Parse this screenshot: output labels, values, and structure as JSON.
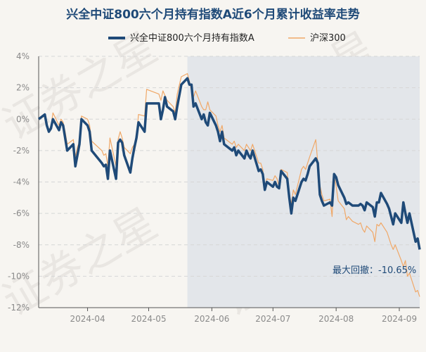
{
  "chart_data": {
    "type": "line",
    "title": "兴全中证800六个月持有指数A近6个月累计收益率走势",
    "yticks": [
      "4%",
      "2%",
      "0%",
      "-2%",
      "-4%",
      "-6%",
      "-8%",
      "-10%",
      "-12%"
    ],
    "ylim": [
      -12,
      4
    ],
    "xticks": [
      {
        "label": "2024-04",
        "x": "2024-04-01"
      },
      {
        "label": "2024-05",
        "x": "2024-05-01"
      },
      {
        "label": "2024-06",
        "x": "2024-06-01"
      },
      {
        "label": "2024-07",
        "x": "2024-07-01"
      },
      {
        "label": "2024-08",
        "x": "2024-08-01"
      },
      {
        "label": "2024-09",
        "x": "2024-09-01"
      }
    ],
    "xlim": [
      "2024-03-08",
      "2024-09-11"
    ],
    "legend_position": "top",
    "grid": true,
    "shaded_region": {
      "start": "2024-05-20",
      "end": "2024-09-11"
    },
    "annotation": {
      "label": "最大回撤：",
      "value": "-10.65%"
    },
    "series": [
      {
        "name": "兴全中证800六个月持有指数A",
        "color": "#1f4a78",
        "values": [
          [
            "2024-03-08",
            0.0
          ],
          [
            "2024-03-11",
            0.3
          ],
          [
            "2024-03-12",
            -0.4
          ],
          [
            "2024-03-13",
            -0.8
          ],
          [
            "2024-03-14",
            -0.6
          ],
          [
            "2024-03-15",
            0.0
          ],
          [
            "2024-03-18",
            -0.7
          ],
          [
            "2024-03-19",
            -0.2
          ],
          [
            "2024-03-20",
            -0.4
          ],
          [
            "2024-03-21",
            -1.2
          ],
          [
            "2024-03-22",
            -2.0
          ],
          [
            "2024-03-25",
            -1.6
          ],
          [
            "2024-03-26",
            -3.0
          ],
          [
            "2024-03-27",
            -2.3
          ],
          [
            "2024-03-28",
            -1.6
          ],
          [
            "2024-03-29",
            0.0
          ],
          [
            "2024-04-01",
            -0.4
          ],
          [
            "2024-04-02",
            -0.8
          ],
          [
            "2024-04-03",
            -2.0
          ],
          [
            "2024-04-08",
            -2.8
          ],
          [
            "2024-04-09",
            -3.0
          ],
          [
            "2024-04-10",
            -2.9
          ],
          [
            "2024-04-11",
            -3.8
          ],
          [
            "2024-04-12",
            -2.0
          ],
          [
            "2024-04-15",
            -3.8
          ],
          [
            "2024-04-16",
            -1.5
          ],
          [
            "2024-04-17",
            -1.3
          ],
          [
            "2024-04-18",
            -1.5
          ],
          [
            "2024-04-19",
            -2.3
          ],
          [
            "2024-04-22",
            -3.4
          ],
          [
            "2024-04-23",
            -2.5
          ],
          [
            "2024-04-24",
            -1.8
          ],
          [
            "2024-04-25",
            -1.2
          ],
          [
            "2024-04-26",
            -0.2
          ],
          [
            "2024-04-29",
            -0.8
          ],
          [
            "2024-04-30",
            1.0
          ],
          [
            "2024-05-06",
            1.0
          ],
          [
            "2024-05-07",
            0.0
          ],
          [
            "2024-05-08",
            0.6
          ],
          [
            "2024-05-09",
            1.4
          ],
          [
            "2024-05-10",
            0.8
          ],
          [
            "2024-05-13",
            0.5
          ],
          [
            "2024-05-14",
            0.0
          ],
          [
            "2024-05-15",
            0.8
          ],
          [
            "2024-05-17",
            2.2
          ],
          [
            "2024-05-20",
            2.6
          ],
          [
            "2024-05-21",
            2.2
          ],
          [
            "2024-05-22",
            2.2
          ],
          [
            "2024-05-23",
            0.8
          ],
          [
            "2024-05-24",
            1.0
          ],
          [
            "2024-05-27",
            0.0
          ],
          [
            "2024-05-28",
            0.3
          ],
          [
            "2024-05-29",
            -0.2
          ],
          [
            "2024-05-30",
            -0.4
          ],
          [
            "2024-05-31",
            0.4
          ],
          [
            "2024-06-03",
            -0.4
          ],
          [
            "2024-06-04",
            -0.8
          ],
          [
            "2024-06-05",
            -1.4
          ],
          [
            "2024-06-06",
            -0.8
          ],
          [
            "2024-06-07",
            -1.6
          ],
          [
            "2024-06-11",
            -2.0
          ],
          [
            "2024-06-12",
            -1.8
          ],
          [
            "2024-06-13",
            -2.3
          ],
          [
            "2024-06-14",
            -2.0
          ],
          [
            "2024-06-17",
            -2.5
          ],
          [
            "2024-06-18",
            -2.0
          ],
          [
            "2024-06-19",
            -2.3
          ],
          [
            "2024-06-20",
            -2.5
          ],
          [
            "2024-06-21",
            -2.0
          ],
          [
            "2024-06-24",
            -3.3
          ],
          [
            "2024-06-25",
            -3.2
          ],
          [
            "2024-06-26",
            -3.5
          ],
          [
            "2024-06-27",
            -4.5
          ],
          [
            "2024-06-28",
            -4.0
          ],
          [
            "2024-07-01",
            -4.3
          ],
          [
            "2024-07-02",
            -4.0
          ],
          [
            "2024-07-03",
            -4.3
          ],
          [
            "2024-07-04",
            -4.4
          ],
          [
            "2024-07-05",
            -3.3
          ],
          [
            "2024-07-08",
            -3.8
          ],
          [
            "2024-07-09",
            -5.0
          ],
          [
            "2024-07-10",
            -6.0
          ],
          [
            "2024-07-11",
            -5.0
          ],
          [
            "2024-07-12",
            -5.2
          ],
          [
            "2024-07-15",
            -4.0
          ],
          [
            "2024-07-16",
            -3.8
          ],
          [
            "2024-07-17",
            -3.9
          ],
          [
            "2024-07-18",
            -3.5
          ],
          [
            "2024-07-19",
            -3.0
          ],
          [
            "2024-07-22",
            -2.5
          ],
          [
            "2024-07-23",
            -2.8
          ],
          [
            "2024-07-24",
            -4.8
          ],
          [
            "2024-07-25",
            -5.2
          ],
          [
            "2024-07-26",
            -5.5
          ],
          [
            "2024-07-29",
            -5.3
          ],
          [
            "2024-07-30",
            -5.5
          ],
          [
            "2024-07-31",
            -3.5
          ],
          [
            "2024-08-01",
            -3.7
          ],
          [
            "2024-08-02",
            -4.2
          ],
          [
            "2024-08-05",
            -5.0
          ],
          [
            "2024-08-06",
            -5.4
          ],
          [
            "2024-08-07",
            -5.3
          ],
          [
            "2024-08-09",
            -5.5
          ],
          [
            "2024-08-12",
            -5.5
          ],
          [
            "2024-08-13",
            -5.4
          ],
          [
            "2024-08-14",
            -5.5
          ],
          [
            "2024-08-15",
            -5.8
          ],
          [
            "2024-08-16",
            -5.3
          ],
          [
            "2024-08-19",
            -5.6
          ],
          [
            "2024-08-20",
            -6.2
          ],
          [
            "2024-08-21",
            -5.3
          ],
          [
            "2024-08-22",
            -5.3
          ],
          [
            "2024-08-23",
            -4.7
          ],
          [
            "2024-08-26",
            -5.4
          ],
          [
            "2024-08-27",
            -5.7
          ],
          [
            "2024-08-28",
            -6.2
          ],
          [
            "2024-08-29",
            -6.7
          ],
          [
            "2024-08-30",
            -6.0
          ],
          [
            "2024-09-02",
            -6.6
          ],
          [
            "2024-09-03",
            -5.3
          ],
          [
            "2024-09-04",
            -6.0
          ],
          [
            "2024-09-05",
            -6.6
          ],
          [
            "2024-09-06",
            -6.0
          ],
          [
            "2024-09-09",
            -7.8
          ],
          [
            "2024-09-10",
            -7.6
          ],
          [
            "2024-09-11",
            -8.3
          ]
        ]
      },
      {
        "name": "沪深300",
        "color": "#f0a868",
        "values": [
          [
            "2024-03-08",
            0.0
          ],
          [
            "2024-03-11",
            0.2
          ],
          [
            "2024-03-12",
            -0.4
          ],
          [
            "2024-03-13",
            -0.7
          ],
          [
            "2024-03-14",
            -0.5
          ],
          [
            "2024-03-15",
            0.4
          ],
          [
            "2024-03-18",
            -0.4
          ],
          [
            "2024-03-19",
            0.0
          ],
          [
            "2024-03-20",
            -0.2
          ],
          [
            "2024-03-21",
            -0.8
          ],
          [
            "2024-03-22",
            -1.6
          ],
          [
            "2024-03-25",
            -1.3
          ],
          [
            "2024-03-26",
            -2.4
          ],
          [
            "2024-03-27",
            -1.8
          ],
          [
            "2024-03-28",
            -1.4
          ],
          [
            "2024-03-29",
            0.2
          ],
          [
            "2024-04-01",
            0.0
          ],
          [
            "2024-04-02",
            -0.4
          ],
          [
            "2024-04-03",
            -1.4
          ],
          [
            "2024-04-08",
            -2.0
          ],
          [
            "2024-04-09",
            -2.3
          ],
          [
            "2024-04-10",
            -2.2
          ],
          [
            "2024-04-11",
            -3.0
          ],
          [
            "2024-04-12",
            -1.2
          ],
          [
            "2024-04-15",
            -3.0
          ],
          [
            "2024-04-16",
            -1.3
          ],
          [
            "2024-04-17",
            -0.8
          ],
          [
            "2024-04-18",
            -1.2
          ],
          [
            "2024-04-19",
            -1.8
          ],
          [
            "2024-04-22",
            -2.2
          ],
          [
            "2024-04-23",
            -1.8
          ],
          [
            "2024-04-24",
            -1.6
          ],
          [
            "2024-04-25",
            -1.2
          ],
          [
            "2024-04-26",
            0.3
          ],
          [
            "2024-04-29",
            0.2
          ],
          [
            "2024-04-30",
            1.9
          ],
          [
            "2024-05-06",
            1.6
          ],
          [
            "2024-05-07",
            1.2
          ],
          [
            "2024-05-08",
            1.8
          ],
          [
            "2024-05-09",
            1.5
          ],
          [
            "2024-05-10",
            1.2
          ],
          [
            "2024-05-13",
            0.8
          ],
          [
            "2024-05-14",
            0.4
          ],
          [
            "2024-05-15",
            1.6
          ],
          [
            "2024-05-17",
            2.7
          ],
          [
            "2024-05-20",
            2.9
          ],
          [
            "2024-05-21",
            2.4
          ],
          [
            "2024-05-22",
            1.8
          ],
          [
            "2024-05-23",
            1.4
          ],
          [
            "2024-05-24",
            1.8
          ],
          [
            "2024-05-27",
            0.8
          ],
          [
            "2024-05-28",
            0.6
          ],
          [
            "2024-05-29",
            0.6
          ],
          [
            "2024-05-30",
            1.1
          ],
          [
            "2024-05-31",
            0.6
          ],
          [
            "2024-06-03",
            0.2
          ],
          [
            "2024-06-04",
            -0.4
          ],
          [
            "2024-06-05",
            -0.8
          ],
          [
            "2024-06-06",
            -0.4
          ],
          [
            "2024-06-07",
            -1.2
          ],
          [
            "2024-06-11",
            -1.6
          ],
          [
            "2024-06-12",
            -1.4
          ],
          [
            "2024-06-13",
            -1.8
          ],
          [
            "2024-06-14",
            -1.6
          ],
          [
            "2024-06-17",
            -2.0
          ],
          [
            "2024-06-18",
            -1.6
          ],
          [
            "2024-06-19",
            -1.8
          ],
          [
            "2024-06-20",
            -2.0
          ],
          [
            "2024-06-21",
            -1.6
          ],
          [
            "2024-06-24",
            -2.8
          ],
          [
            "2024-06-25",
            -2.8
          ],
          [
            "2024-06-26",
            -3.2
          ],
          [
            "2024-06-27",
            -4.3
          ],
          [
            "2024-06-28",
            -3.8
          ],
          [
            "2024-07-01",
            -3.9
          ],
          [
            "2024-07-02",
            -3.6
          ],
          [
            "2024-07-03",
            -3.8
          ],
          [
            "2024-07-04",
            -4.3
          ],
          [
            "2024-07-05",
            -3.2
          ],
          [
            "2024-07-08",
            -3.4
          ],
          [
            "2024-07-09",
            -4.8
          ],
          [
            "2024-07-10",
            -5.4
          ],
          [
            "2024-07-11",
            -4.5
          ],
          [
            "2024-07-12",
            -4.8
          ],
          [
            "2024-07-15",
            -3.2
          ],
          [
            "2024-07-16",
            -3.0
          ],
          [
            "2024-07-17",
            -3.2
          ],
          [
            "2024-07-18",
            -2.8
          ],
          [
            "2024-07-19",
            -2.4
          ],
          [
            "2024-07-22",
            -1.3
          ],
          [
            "2024-07-23",
            -2.8
          ],
          [
            "2024-07-24",
            -4.2
          ],
          [
            "2024-07-25",
            -4.8
          ],
          [
            "2024-07-26",
            -5.2
          ],
          [
            "2024-07-29",
            -5.1
          ],
          [
            "2024-07-30",
            -6.2
          ],
          [
            "2024-07-31",
            -3.6
          ],
          [
            "2024-08-01",
            -4.3
          ],
          [
            "2024-08-02",
            -5.2
          ],
          [
            "2024-08-05",
            -5.7
          ],
          [
            "2024-08-06",
            -6.4
          ],
          [
            "2024-08-07",
            -6.2
          ],
          [
            "2024-08-09",
            -6.5
          ],
          [
            "2024-08-12",
            -6.7
          ],
          [
            "2024-08-13",
            -6.6
          ],
          [
            "2024-08-14",
            -7.0
          ],
          [
            "2024-08-15",
            -7.2
          ],
          [
            "2024-08-16",
            -6.8
          ],
          [
            "2024-08-19",
            -7.2
          ],
          [
            "2024-08-20",
            -7.8
          ],
          [
            "2024-08-21",
            -6.7
          ],
          [
            "2024-08-22",
            -6.8
          ],
          [
            "2024-08-23",
            -6.6
          ],
          [
            "2024-08-26",
            -7.2
          ],
          [
            "2024-08-27",
            -7.6
          ],
          [
            "2024-08-28",
            -8.0
          ],
          [
            "2024-08-29",
            -8.3
          ],
          [
            "2024-08-30",
            -8.0
          ],
          [
            "2024-09-02",
            -9.0
          ],
          [
            "2024-09-03",
            -9.4
          ],
          [
            "2024-09-04",
            -9.0
          ],
          [
            "2024-09-05",
            -10.0
          ],
          [
            "2024-09-06",
            -9.8
          ],
          [
            "2024-09-09",
            -11.0
          ],
          [
            "2024-09-10",
            -10.9
          ],
          [
            "2024-09-11",
            -11.3
          ]
        ]
      }
    ]
  },
  "watermark": [
    "证券之星",
    "证券之星",
    "证券之星",
    "证券之星"
  ]
}
